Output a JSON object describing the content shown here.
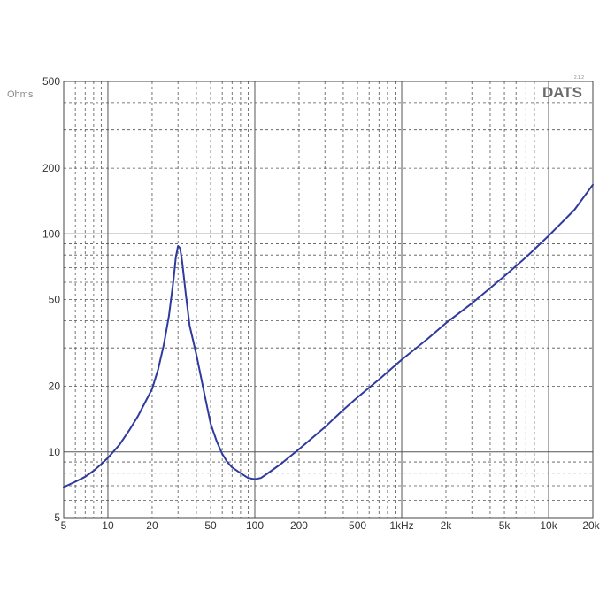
{
  "chart_data": {
    "type": "line",
    "title": "",
    "xlabel": "",
    "ylabel": "Ohms",
    "x_scale": "log",
    "y_scale": "log",
    "xlim": [
      5,
      20000
    ],
    "ylim": [
      5,
      500
    ],
    "grid": true,
    "x_ticks": [
      {
        "value": 5,
        "label": "5"
      },
      {
        "value": 10,
        "label": "10"
      },
      {
        "value": 20,
        "label": "20"
      },
      {
        "value": 50,
        "label": "50"
      },
      {
        "value": 100,
        "label": "100"
      },
      {
        "value": 200,
        "label": "200"
      },
      {
        "value": 500,
        "label": "500"
      },
      {
        "value": 1000,
        "label": "1kHz"
      },
      {
        "value": 2000,
        "label": "2k"
      },
      {
        "value": 5000,
        "label": "5k"
      },
      {
        "value": 10000,
        "label": "10k"
      },
      {
        "value": 20000,
        "label": "20k"
      }
    ],
    "y_ticks": [
      {
        "value": 5,
        "label": "5"
      },
      {
        "value": 10,
        "label": "10"
      },
      {
        "value": 20,
        "label": "20"
      },
      {
        "value": 50,
        "label": "50"
      },
      {
        "value": 100,
        "label": "100"
      },
      {
        "value": 200,
        "label": "200"
      },
      {
        "value": 500,
        "label": "500"
      }
    ],
    "series": [
      {
        "color": "#2e3a9e",
        "points": [
          [
            5,
            6.9
          ],
          [
            6,
            7.3
          ],
          [
            7,
            7.7
          ],
          [
            8,
            8.2
          ],
          [
            9,
            8.8
          ],
          [
            10,
            9.4
          ],
          [
            12,
            10.8
          ],
          [
            14,
            12.6
          ],
          [
            16,
            14.6
          ],
          [
            18,
            17.0
          ],
          [
            20,
            19.5
          ],
          [
            22,
            24
          ],
          [
            24,
            31
          ],
          [
            26,
            42
          ],
          [
            28,
            62
          ],
          [
            29,
            78
          ],
          [
            30,
            88
          ],
          [
            31,
            86
          ],
          [
            32,
            75
          ],
          [
            34,
            52
          ],
          [
            36,
            38
          ],
          [
            40,
            28
          ],
          [
            45,
            19
          ],
          [
            50,
            13.5
          ],
          [
            55,
            11.2
          ],
          [
            60,
            9.8
          ],
          [
            65,
            9.0
          ],
          [
            70,
            8.5
          ],
          [
            80,
            8.0
          ],
          [
            90,
            7.6
          ],
          [
            100,
            7.5
          ],
          [
            110,
            7.6
          ],
          [
            120,
            7.9
          ],
          [
            150,
            8.8
          ],
          [
            200,
            10.3
          ],
          [
            300,
            13.0
          ],
          [
            400,
            15.6
          ],
          [
            500,
            17.8
          ],
          [
            700,
            21.5
          ],
          [
            1000,
            26.5
          ],
          [
            1500,
            33
          ],
          [
            2000,
            39
          ],
          [
            3000,
            48
          ],
          [
            5000,
            64
          ],
          [
            7000,
            78
          ],
          [
            10000,
            98
          ],
          [
            15000,
            129
          ],
          [
            20000,
            168
          ]
        ]
      }
    ]
  },
  "labels": {
    "y_unit": "Ohms",
    "brand": "DATS",
    "version": "2.1.2"
  },
  "colors": {
    "grid_major": "#555555",
    "grid_minor": "#555555",
    "frame": "#444444",
    "curve": "#2e3a9e"
  }
}
